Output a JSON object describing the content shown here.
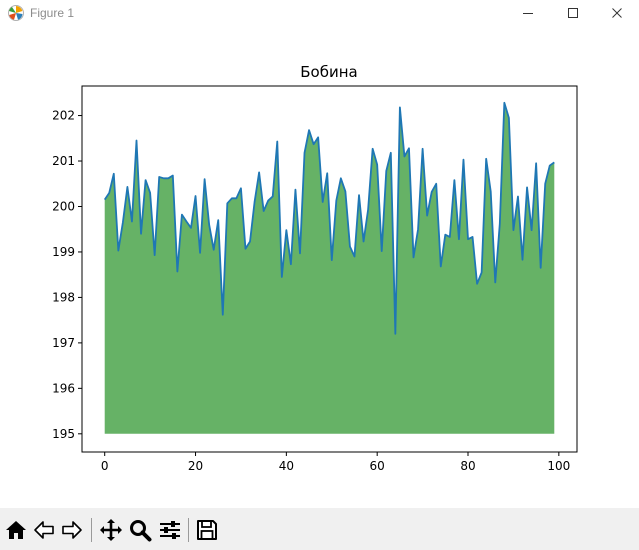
{
  "window": {
    "title": "Figure 1",
    "icons": {
      "app": "matplotlib-icon",
      "minimize": "minimize-icon",
      "maximize": "maximize-icon",
      "close": "close-icon"
    }
  },
  "toolbar": {
    "tools": [
      {
        "name": "home-icon",
        "action": "reset-view"
      },
      {
        "name": "back-arrow-icon",
        "action": "back"
      },
      {
        "name": "forward-arrow-icon",
        "action": "forward"
      },
      {
        "name": "pan-icon",
        "action": "pan"
      },
      {
        "name": "zoom-icon",
        "action": "zoom"
      },
      {
        "name": "configure-subplots-icon",
        "action": "configure"
      },
      {
        "name": "save-icon",
        "action": "save"
      }
    ]
  },
  "chart_data": {
    "type": "area",
    "title": "Бобина",
    "xlabel": "",
    "ylabel": "",
    "xlim": [
      -5,
      104
    ],
    "ylim": [
      194.6,
      202.65
    ],
    "xticks": [
      0,
      20,
      40,
      60,
      80,
      100
    ],
    "yticks": [
      195,
      196,
      197,
      198,
      199,
      200,
      201,
      202
    ],
    "baseline": 195,
    "grid": false,
    "line_color": "#1f77b4",
    "fill_color": "#66b266",
    "x_start": 0,
    "x_step": 1,
    "y": [
      200.15,
      200.3,
      200.72,
      199.03,
      199.65,
      200.43,
      199.67,
      201.45,
      199.4,
      200.58,
      200.3,
      198.93,
      200.65,
      200.62,
      200.62,
      200.68,
      198.57,
      199.82,
      199.67,
      199.53,
      200.23,
      198.98,
      200.6,
      199.6,
      199.05,
      199.7,
      197.62,
      200.07,
      200.18,
      200.18,
      200.4,
      199.07,
      199.23,
      200.1,
      200.75,
      199.9,
      200.13,
      200.22,
      201.43,
      198.45,
      199.48,
      198.73,
      200.37,
      198.97,
      201.18,
      201.68,
      201.37,
      201.52,
      200.1,
      200.73,
      198.82,
      200.13,
      200.62,
      200.33,
      199.12,
      198.9,
      200.25,
      199.23,
      199.93,
      201.27,
      200.92,
      199.02,
      200.78,
      201.18,
      197.2,
      202.18,
      201.1,
      201.28,
      198.88,
      199.5,
      201.27,
      199.8,
      200.32,
      200.5,
      198.68,
      199.38,
      199.33,
      200.58,
      199.28,
      201.03,
      199.28,
      199.33,
      198.3,
      198.55,
      201.05,
      200.33,
      198.33,
      199.62,
      202.28,
      201.95,
      199.48,
      200.22,
      198.83,
      200.42,
      199.48,
      200.95,
      198.65,
      200.5,
      200.9,
      200.97
    ]
  }
}
